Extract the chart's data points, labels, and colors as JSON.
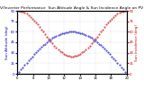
{
  "title": "Solar PV/Inverter Performance  Sun Altitude Angle & Sun Incidence Angle on PV Panels",
  "ylabel_left": "Sun Altitude (deg)",
  "ylabel_right": "Sun Incidence (deg)",
  "x_start": 6,
  "x_end": 20,
  "num_points": 60,
  "altitude_peak": 60,
  "incidence_peak": 90,
  "incidence_mid": 25,
  "altitude_color": "#0000cc",
  "incidence_color": "#cc0000",
  "bg_color": "#ffffff",
  "grid_color": "#aaaaaa",
  "ylim_left": [
    0,
    90
  ],
  "ylim_right": [
    0,
    90
  ],
  "title_fontsize": 3.2,
  "label_fontsize": 3.0,
  "tick_fontsize": 2.8,
  "marker_size": 0.8,
  "x_ticks": [
    6,
    8,
    10,
    12,
    14,
    16,
    18,
    20
  ],
  "y_ticks": [
    0,
    15,
    30,
    45,
    60,
    75,
    90
  ]
}
